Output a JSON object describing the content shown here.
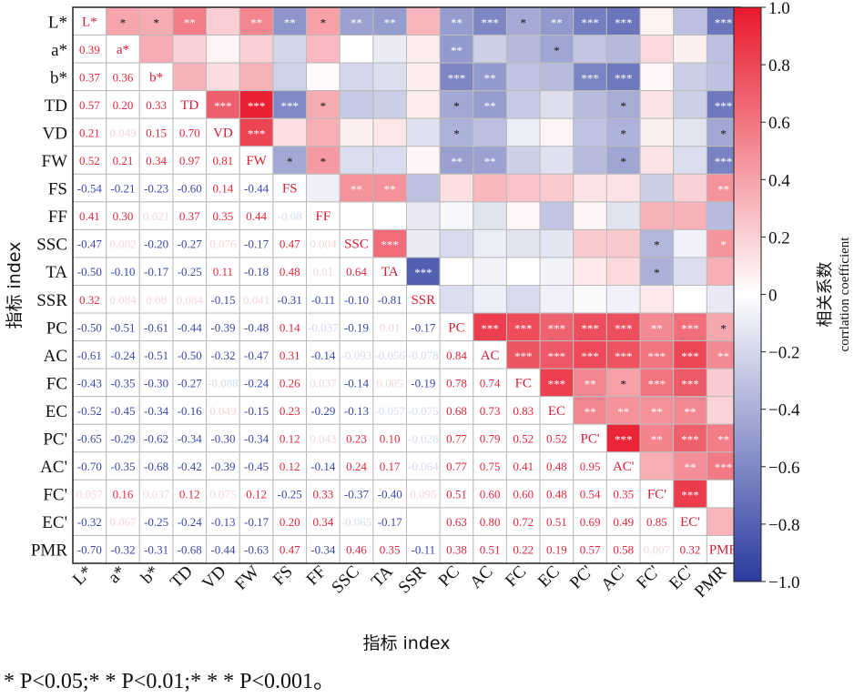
{
  "chart_data": {
    "type": "heatmap",
    "labels": [
      "L*",
      "a*",
      "b*",
      "TD",
      "VD",
      "FW",
      "FS",
      "FF",
      "SSC",
      "TA",
      "SSR",
      "PC",
      "AC",
      "FC",
      "EC",
      "PC'",
      "AC'",
      "FC'",
      "EC'",
      "PMR"
    ],
    "lower": [
      [],
      [
        0.39
      ],
      [
        0.37,
        0.36
      ],
      [
        0.57,
        0.2,
        0.33
      ],
      [
        0.21,
        0.049,
        0.15,
        0.7
      ],
      [
        0.52,
        0.21,
        0.34,
        0.97,
        0.81
      ],
      [
        -0.54,
        -0.21,
        -0.23,
        -0.6,
        0.14,
        -0.44
      ],
      [
        0.41,
        0.3,
        0.021,
        0.37,
        0.35,
        0.44,
        -0.08
      ],
      [
        -0.47,
        0.002,
        -0.2,
        -0.27,
        0.076,
        -0.17,
        0.47,
        0.004
      ],
      [
        -0.5,
        -0.1,
        -0.17,
        -0.25,
        0.11,
        -0.18,
        0.48,
        0.01,
        0.64
      ],
      [
        0.32,
        0.084,
        0.08,
        0.084,
        -0.15,
        0.041,
        -0.31,
        -0.11,
        -0.1,
        -0.81
      ],
      [
        -0.5,
        -0.51,
        -0.61,
        -0.44,
        -0.39,
        -0.48,
        0.14,
        -0.037,
        -0.19,
        0.01,
        -0.17
      ],
      [
        -0.61,
        -0.24,
        -0.51,
        -0.5,
        -0.32,
        -0.47,
        0.31,
        -0.14,
        -0.093,
        -0.056,
        -0.078,
        0.84
      ],
      [
        -0.43,
        -0.35,
        -0.3,
        -0.27,
        -0.088,
        -0.24,
        0.26,
        0.037,
        -0.14,
        0.005,
        -0.19,
        0.78,
        0.74
      ],
      [
        -0.52,
        -0.45,
        -0.34,
        -0.16,
        0.049,
        -0.15,
        0.23,
        -0.29,
        -0.13,
        -0.057,
        -0.075,
        0.68,
        0.73,
        0.83
      ],
      [
        -0.65,
        -0.29,
        -0.62,
        -0.34,
        -0.3,
        -0.34,
        0.12,
        0.043,
        0.23,
        0.1,
        -0.028,
        0.77,
        0.79,
        0.52,
        0.52
      ],
      [
        -0.7,
        -0.35,
        -0.68,
        -0.42,
        -0.39,
        -0.45,
        0.12,
        -0.14,
        0.24,
        0.17,
        -0.064,
        0.77,
        0.75,
        0.41,
        0.48,
        0.95
      ],
      [
        0.057,
        0.16,
        0.037,
        0.12,
        0.075,
        0.12,
        -0.25,
        0.33,
        -0.37,
        -0.4,
        0.095,
        0.51,
        0.6,
        0.6,
        0.48,
        0.54,
        0.35
      ],
      [
        -0.32,
        0.067,
        -0.25,
        -0.24,
        -0.13,
        -0.17,
        0.2,
        0.34,
        -0.065,
        -0.17,
        null,
        0.63,
        0.8,
        0.72,
        0.51,
        0.69,
        0.49,
        0.85
      ],
      [
        -0.7,
        -0.32,
        -0.31,
        -0.68,
        -0.44,
        -0.63,
        0.47,
        -0.34,
        0.46,
        0.35,
        -0.11,
        0.38,
        0.51,
        0.22,
        0.19,
        0.57,
        0.58,
        0.007,
        0.32
      ]
    ],
    "upper_stars": [
      [
        "",
        "*",
        "*",
        "**",
        "",
        "**",
        "**",
        "*",
        "**",
        "**",
        "",
        "**",
        "***",
        "*",
        "**",
        "***",
        "***",
        "",
        "",
        "***"
      ],
      [
        "",
        "",
        "",
        "",
        "",
        "",
        "",
        "",
        "",
        "",
        "",
        "**",
        "",
        "",
        "*",
        "",
        "",
        "",
        "",
        ""
      ],
      [
        "",
        "",
        "",
        "",
        "",
        "",
        "",
        "",
        "",
        "",
        "",
        "***",
        "**",
        "",
        "",
        "***",
        "***",
        "",
        "",
        ""
      ],
      [
        "",
        "",
        "",
        "",
        "***",
        "***",
        "***",
        "*",
        "",
        "",
        "",
        "*",
        "**",
        "",
        "",
        "",
        "*",
        "",
        "",
        "***"
      ],
      [
        "",
        "",
        "",
        "",
        "",
        "***",
        "",
        "",
        "",
        "",
        "",
        "*",
        "",
        "",
        "",
        "",
        "*",
        "",
        "",
        "*"
      ],
      [
        "",
        "",
        "",
        "",
        "",
        "",
        "*",
        "*",
        "",
        "",
        "",
        "**",
        "**",
        "",
        "",
        "",
        "*",
        "",
        "",
        "***"
      ],
      [
        "",
        "",
        "",
        "",
        "",
        "",
        "",
        "",
        "**",
        "**",
        "",
        "",
        "",
        "",
        "",
        "",
        "",
        "",
        "",
        "**"
      ],
      [
        "",
        "",
        "",
        "",
        "",
        "",
        "",
        "",
        "",
        "",
        "",
        "",
        "",
        "",
        "",
        "",
        "",
        "",
        "",
        ""
      ],
      [
        "",
        "",
        "",
        "",
        "",
        "",
        "",
        "",
        "",
        "***",
        "",
        "",
        "",
        "",
        "",
        "",
        "",
        "*",
        "",
        "*"
      ],
      [
        "",
        "",
        "",
        "",
        "",
        "",
        "",
        "",
        "",
        "",
        "***",
        "",
        "",
        "",
        "",
        "",
        "",
        "*",
        "",
        ""
      ],
      [
        "",
        "",
        "",
        "",
        "",
        "",
        "",
        "",
        "",
        "",
        "",
        "",
        "",
        "",
        "",
        "",
        "",
        "",
        "",
        ""
      ],
      [
        "",
        "",
        "",
        "",
        "",
        "",
        "",
        "",
        "",
        "",
        "",
        "",
        "***",
        "***",
        "***",
        "***",
        "***",
        "**",
        "***",
        "*"
      ],
      [
        "",
        "",
        "",
        "",
        "",
        "",
        "",
        "",
        "",
        "",
        "",
        "",
        "",
        "***",
        "***",
        "***",
        "***",
        "***",
        "***",
        "**"
      ],
      [
        "",
        "",
        "",
        "",
        "",
        "",
        "",
        "",
        "",
        "",
        "",
        "",
        "",
        "",
        "***",
        "**",
        "*",
        "***",
        "***",
        ""
      ],
      [
        "",
        "",
        "",
        "",
        "",
        "",
        "",
        "",
        "",
        "",
        "",
        "",
        "",
        "",
        "",
        "**",
        "**",
        "**",
        "**",
        ""
      ],
      [
        "",
        "",
        "",
        "",
        "",
        "",
        "",
        "",
        "",
        "",
        "",
        "",
        "",
        "",
        "",
        "",
        "***",
        "**",
        "***",
        "**"
      ],
      [
        "",
        "",
        "",
        "",
        "",
        "",
        "",
        "",
        "",
        "",
        "",
        "",
        "",
        "",
        "",
        "",
        "",
        "",
        "**",
        "***"
      ],
      [
        "",
        "",
        "",
        "",
        "",
        "",
        "",
        "",
        "",
        "",
        "",
        "",
        "",
        "",
        "",
        "",
        "",
        "",
        "***",
        ""
      ],
      [
        "",
        "",
        "",
        "",
        "",
        "",
        "",
        "",
        "",
        "",
        "",
        "",
        "",
        "",
        "",
        "",
        "",
        "",
        "",
        ""
      ],
      [
        "",
        "",
        "",
        "",
        "",
        "",
        "",
        "",
        "",
        "",
        "",
        "",
        "",
        "",
        "",
        "",
        "",
        "",
        "",
        ""
      ]
    ],
    "diagonal_labels": [
      "L*",
      "a*",
      "b*",
      "TD",
      "VD",
      "FW",
      "FS",
      "FF",
      "SSC",
      "TA",
      "SSR",
      "PC",
      "AC",
      "FC",
      "EC",
      "PC'",
      "AC'",
      "FC'",
      "EC'",
      "PMR"
    ],
    "xlabel": "指标 index",
    "ylabel": "指标 index",
    "colorbar_label_cn": "相关系数",
    "colorbar_label_en": "corrlation coefficient",
    "colorbar_ticks": [
      "1.0",
      "0.8",
      "0.6",
      "0.4",
      "0.2",
      "0",
      "−0.2",
      "−0.4",
      "−0.6",
      "−0.8",
      "−1.0"
    ],
    "vlim": [
      -1.0,
      1.0
    ],
    "colors": {
      "positive": "#e8192c",
      "negative": "#2b3a9e",
      "zero": "#ffffff"
    }
  },
  "footnote": "* P<0.05;* * P<0.01;* * * P<0.001。"
}
